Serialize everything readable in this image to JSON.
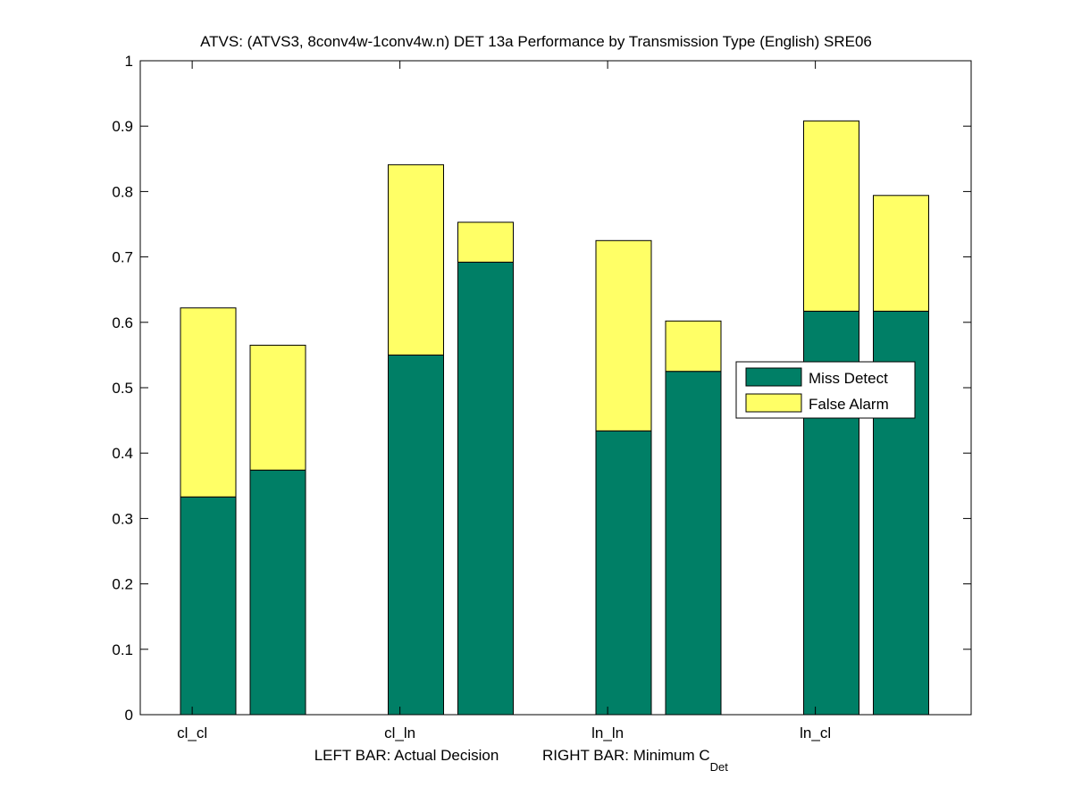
{
  "chart_data": {
    "type": "bar",
    "stacked": true,
    "title": "ATVS: (ATVS3, 8conv4w-1conv4w.n) DET 13a Performance by Transmission Type (English) SRE06",
    "xlabel": {
      "left": "LEFT BAR: Actual Decision",
      "right": "RIGHT BAR: Minimum C",
      "right_subscript": "Det"
    },
    "categories": [
      "cl_cl",
      "cl_ln",
      "ln_ln",
      "ln_cl"
    ],
    "bar_positions_per_category": [
      "LEFT",
      "RIGHT"
    ],
    "ylim": [
      0,
      1
    ],
    "yticks": [
      "0",
      "0.1",
      "0.2",
      "0.3",
      "0.4",
      "0.5",
      "0.6",
      "0.7",
      "0.8",
      "0.9",
      "1"
    ],
    "grid": false,
    "legend_position": "right-center",
    "series": [
      {
        "name": "Miss Detect",
        "color": "#007f66",
        "left_bar_values": [
          0.333,
          0.55,
          0.434,
          0.617
        ],
        "right_bar_values": [
          0.374,
          0.692,
          0.525,
          0.617
        ]
      },
      {
        "name": "False Alarm",
        "color": "#ffff66",
        "left_bar_values": [
          0.289,
          0.291,
          0.291,
          0.291
        ],
        "right_bar_values": [
          0.191,
          0.061,
          0.077,
          0.177
        ]
      }
    ]
  }
}
